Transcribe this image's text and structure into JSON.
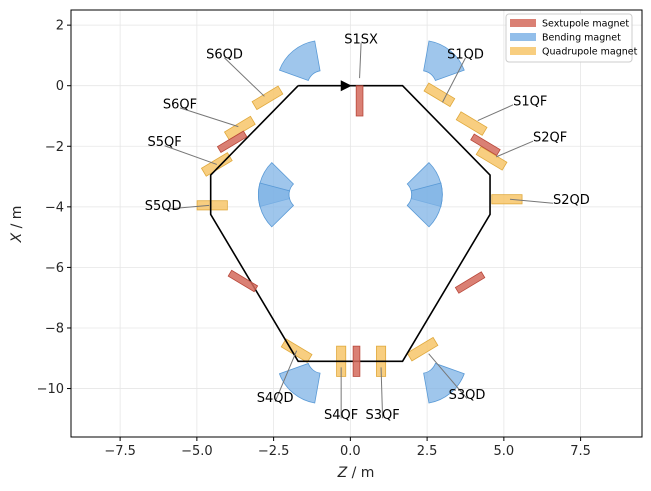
{
  "chart_data": {
    "type": "scatter",
    "title": "",
    "xlabel_var": "Z",
    "xlabel_unit": " / m",
    "ylabel_var": "X",
    "ylabel_unit": " / m",
    "xlim": [
      -9.1,
      9.5
    ],
    "ylim": [
      -11.6,
      2.5
    ],
    "xticks": [
      -7.5,
      -5.0,
      -2.5,
      0.0,
      2.5,
      5.0,
      7.5
    ],
    "xtick_labels": [
      "−7.5",
      "−5.0",
      "−2.5",
      "0.0",
      "2.5",
      "5.0",
      "7.5"
    ],
    "yticks": [
      2,
      0,
      -2,
      -4,
      -6,
      -8,
      -10
    ],
    "ytick_labels": [
      "2",
      "0",
      "−2",
      "−4",
      "−6",
      "−8",
      "−10"
    ],
    "grid": true,
    "colors": {
      "sextupole": "#d46a5c",
      "bending": "#7fb3e6",
      "quadrupole": "#f7c56a",
      "orbit": "#000000"
    },
    "legend": {
      "position": "top-right",
      "entries": [
        {
          "label": "Sextupole magnet",
          "kind": "sextupole"
        },
        {
          "label": "Bending magnet",
          "kind": "bending"
        },
        {
          "label": "Quadrupole magnet",
          "kind": "quadrupole"
        }
      ]
    },
    "orbit": {
      "points": [
        [
          -1.7,
          0
        ],
        [
          1.7,
          0
        ],
        [
          4.55,
          -2.95
        ],
        [
          4.55,
          -4.25
        ],
        [
          1.7,
          -9.1
        ],
        [
          -1.7,
          -9.1
        ],
        [
          -4.55,
          -4.25
        ],
        [
          -4.55,
          -2.95
        ],
        [
          -1.7,
          0
        ]
      ],
      "arrow": {
        "z": -0.15,
        "x": 0,
        "direction": "right"
      }
    },
    "sextupoles": [
      {
        "z": 0.3,
        "x": -0.5,
        "angle": 0,
        "len": 1.0,
        "wid": 0.22
      },
      {
        "z": 0.2,
        "x": -9.1,
        "angle": 0,
        "len": 1.0,
        "wid": 0.22
      },
      {
        "z": 4.4,
        "x": -1.95,
        "angle": -59,
        "len": 1.0,
        "wid": 0.22
      },
      {
        "z": -3.85,
        "x": -1.85,
        "angle": 59,
        "len": 1.0,
        "wid": 0.22
      },
      {
        "z": 3.9,
        "x": -6.5,
        "angle": 59,
        "len": 1.0,
        "wid": 0.22
      },
      {
        "z": -3.5,
        "x": -6.45,
        "angle": -59,
        "len": 1.0,
        "wid": 0.22
      }
    ],
    "quadrupoles": [
      {
        "z": -2.7,
        "x": -0.4,
        "angle": 59,
        "len": 1.0,
        "wid": 0.3
      },
      {
        "z": 2.9,
        "x": -0.3,
        "angle": -59,
        "len": 1.0,
        "wid": 0.3
      },
      {
        "z": -3.6,
        "x": -1.4,
        "angle": 59,
        "len": 1.0,
        "wid": 0.3
      },
      {
        "z": 3.95,
        "x": -1.25,
        "angle": -59,
        "len": 1.0,
        "wid": 0.3
      },
      {
        "z": -4.35,
        "x": -2.6,
        "angle": 59,
        "len": 1.0,
        "wid": 0.3
      },
      {
        "z": 4.6,
        "x": -2.4,
        "angle": -59,
        "len": 1.0,
        "wid": 0.3
      },
      {
        "z": -4.5,
        "x": -3.95,
        "angle": 90,
        "len": 1.0,
        "wid": 0.3
      },
      {
        "z": 5.1,
        "x": -3.75,
        "angle": 90,
        "len": 1.0,
        "wid": 0.3
      },
      {
        "z": -0.3,
        "x": -9.1,
        "angle": 0,
        "len": 1.0,
        "wid": 0.3
      },
      {
        "z": 1.0,
        "x": -9.1,
        "angle": 0,
        "len": 1.0,
        "wid": 0.3
      },
      {
        "z": -1.75,
        "x": -8.75,
        "angle": -59,
        "len": 1.0,
        "wid": 0.3
      },
      {
        "z": 2.35,
        "x": -8.7,
        "angle": 59,
        "len": 1.0,
        "wid": 0.3
      }
    ],
    "bends": [
      {
        "cz": -0.9,
        "cx": 0,
        "angle_start": 100,
        "angle_end": 160
      },
      {
        "cz": 2.3,
        "cx": 0,
        "angle_start": 20,
        "angle_end": 80
      },
      {
        "cz": -1.5,
        "cx": -3.6,
        "angle_start": 135,
        "angle_end": 195
      },
      {
        "cz": 1.5,
        "cx": -3.6,
        "angle_start": -15,
        "angle_end": 45
      },
      {
        "cz": -1.5,
        "cx": -3.6,
        "angle_start": 165,
        "angle_end": 225
      },
      {
        "cz": 1.5,
        "cx": -3.6,
        "angle_start": -45,
        "angle_end": 15
      },
      {
        "cz": -0.9,
        "cx": -9.0,
        "angle_start": 200,
        "angle_end": 260
      },
      {
        "cz": 2.3,
        "cx": -9.0,
        "angle_start": 280,
        "angle_end": 340
      }
    ],
    "annotations": [
      {
        "text": "S1SX",
        "label_z": 0.35,
        "label_x": 1.55,
        "target_z": 0.3,
        "target_x": 0.25,
        "anchor": "middle"
      },
      {
        "text": "S1QD",
        "label_z": 3.75,
        "label_x": 1.05,
        "target_z": 3.0,
        "target_x": -0.55,
        "anchor": "middle"
      },
      {
        "text": "S1QF",
        "label_z": 5.3,
        "label_x": -0.5,
        "target_z": 4.15,
        "target_x": -1.15,
        "anchor": "start"
      },
      {
        "text": "S2QF",
        "label_z": 5.95,
        "label_x": -1.7,
        "target_z": 4.75,
        "target_x": -2.35,
        "anchor": "start"
      },
      {
        "text": "S2QD",
        "label_z": 6.6,
        "label_x": -3.75,
        "target_z": 5.2,
        "target_x": -3.75,
        "anchor": "start"
      },
      {
        "text": "S3QD",
        "label_z": 3.8,
        "label_x": -10.2,
        "target_z": 2.55,
        "target_x": -8.85,
        "anchor": "middle"
      },
      {
        "text": "S3QF",
        "label_z": 1.05,
        "label_x": -10.85,
        "target_z": 1.0,
        "target_x": -9.3,
        "anchor": "middle"
      },
      {
        "text": "S4QF",
        "label_z": -0.3,
        "label_x": -10.85,
        "target_z": -0.3,
        "target_x": -9.3,
        "anchor": "middle"
      },
      {
        "text": "S4QD",
        "label_z": -2.45,
        "label_x": -10.3,
        "target_z": -1.75,
        "target_x": -8.75,
        "anchor": "middle"
      },
      {
        "text": "S5QD",
        "label_z": -6.1,
        "label_x": -3.95,
        "target_z": -4.6,
        "target_x": -3.95,
        "anchor": "middle"
      },
      {
        "text": "S5QF",
        "label_z": -6.05,
        "label_x": -1.85,
        "target_z": -4.35,
        "target_x": -2.6,
        "anchor": "middle"
      },
      {
        "text": "S6QF",
        "label_z": -5.55,
        "label_x": -0.6,
        "target_z": -3.65,
        "target_x": -1.35,
        "anchor": "middle"
      },
      {
        "text": "S6QD",
        "label_z": -4.1,
        "label_x": 1.05,
        "target_z": -2.8,
        "target_x": -0.35,
        "anchor": "middle"
      }
    ]
  }
}
